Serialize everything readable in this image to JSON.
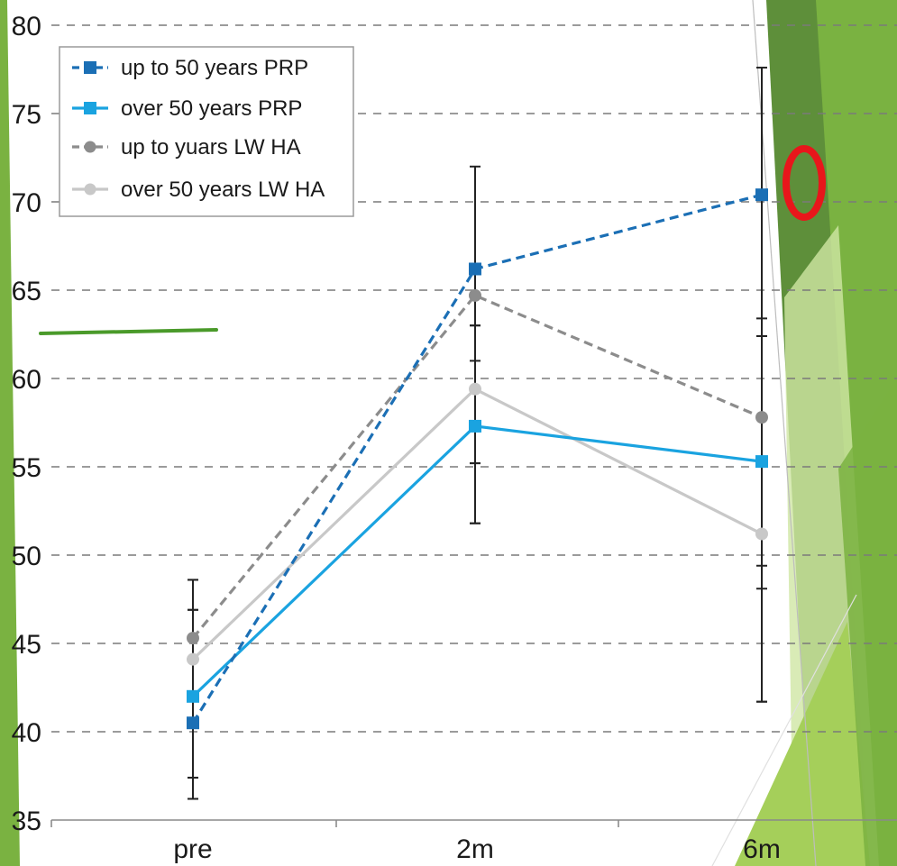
{
  "chart_data": {
    "type": "line",
    "categories": [
      "pre",
      "2m",
      "6m"
    ],
    "ylim": [
      35,
      80
    ],
    "yticks": [
      35,
      40,
      45,
      50,
      55,
      60,
      65,
      70,
      75,
      80
    ],
    "grid": "horizontal-dashed",
    "legend_position": "top-left",
    "series": [
      {
        "name": "up to 50 years PRP",
        "values": [
          40.5,
          66.2,
          70.4
        ],
        "err_low": [
          36.2,
          55.2,
          41.7
        ],
        "err_high": [
          46.9,
          72.0,
          77.6
        ],
        "color": "#1b6fb5",
        "dashed": true,
        "marker": "square"
      },
      {
        "name": "over 50 years PRP",
        "values": [
          42.0,
          57.3,
          55.3
        ],
        "err_low": [
          37.4,
          51.8,
          48.1
        ],
        "err_high": [
          48.6,
          63.0,
          63.4
        ],
        "color": "#1aa3e0",
        "dashed": false,
        "marker": "square"
      },
      {
        "name": "up to yuars LW HA",
        "values": [
          45.3,
          64.7,
          57.8
        ],
        "err_low": [
          36.2,
          55.2,
          49.4
        ],
        "err_high": [
          46.9,
          61.0,
          62.4
        ],
        "color": "#8c8c8c",
        "dashed": true,
        "marker": "circle"
      },
      {
        "name": "over 50 years LW HA",
        "values": [
          44.1,
          59.4,
          51.2
        ],
        "err_low": [
          37.4,
          51.8,
          41.7
        ],
        "err_high": [
          48.6,
          63.0,
          62.4
        ],
        "color": "#c8c8c8",
        "dashed": false,
        "marker": "circle"
      }
    ]
  },
  "colors": {
    "decor_dark_green": "#5e8f3a",
    "decor_green": "#7ab241",
    "decor_light_green": "#a5cf5a",
    "decor_pale_green": "#cfe6a4",
    "annotation_red": "#e8161b",
    "annotation_green_line": "#4a9a2a"
  }
}
